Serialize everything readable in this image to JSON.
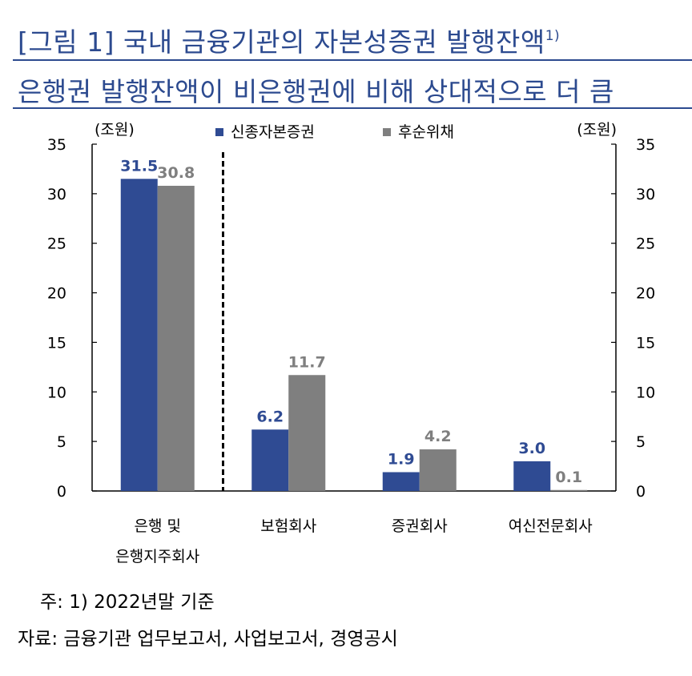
{
  "title": {
    "line1": "[그림 1] 국내 금융기관의 자본성증권 발행잔액",
    "line1_footnote": "1)",
    "line2": "은행권 발행잔액이 비은행권에 비해 상대적으로 더 큼"
  },
  "chart_data": {
    "type": "bar",
    "unit_left": "(조원)",
    "unit_right": "(조원)",
    "categories": [
      [
        "은행 및",
        "은행지주회사"
      ],
      [
        "보험회사"
      ],
      [
        "증권회사"
      ],
      [
        "여신전문회사"
      ]
    ],
    "series": [
      {
        "name": "신종자본증권",
        "color": "#2f4b93",
        "values": [
          31.5,
          6.2,
          1.9,
          3.0
        ],
        "labels": [
          "31.5",
          "6.2",
          "1.9",
          "3.0"
        ]
      },
      {
        "name": "후순위채",
        "color": "#7f7f7f",
        "values": [
          30.8,
          11.7,
          4.2,
          0.1
        ],
        "labels": [
          "30.8",
          "11.7",
          "4.2",
          "0.1"
        ]
      }
    ],
    "ylim": [
      0,
      35
    ],
    "yticks": [
      "0",
      "5",
      "10",
      "15",
      "20",
      "25",
      "30",
      "35"
    ],
    "legend_position": "top-center",
    "grid": false
  },
  "notes": {
    "note1": "주: 1) 2022년말 기준",
    "note2": "자료: 금융기관 업무보고서, 사업보고서, 경영공시"
  }
}
